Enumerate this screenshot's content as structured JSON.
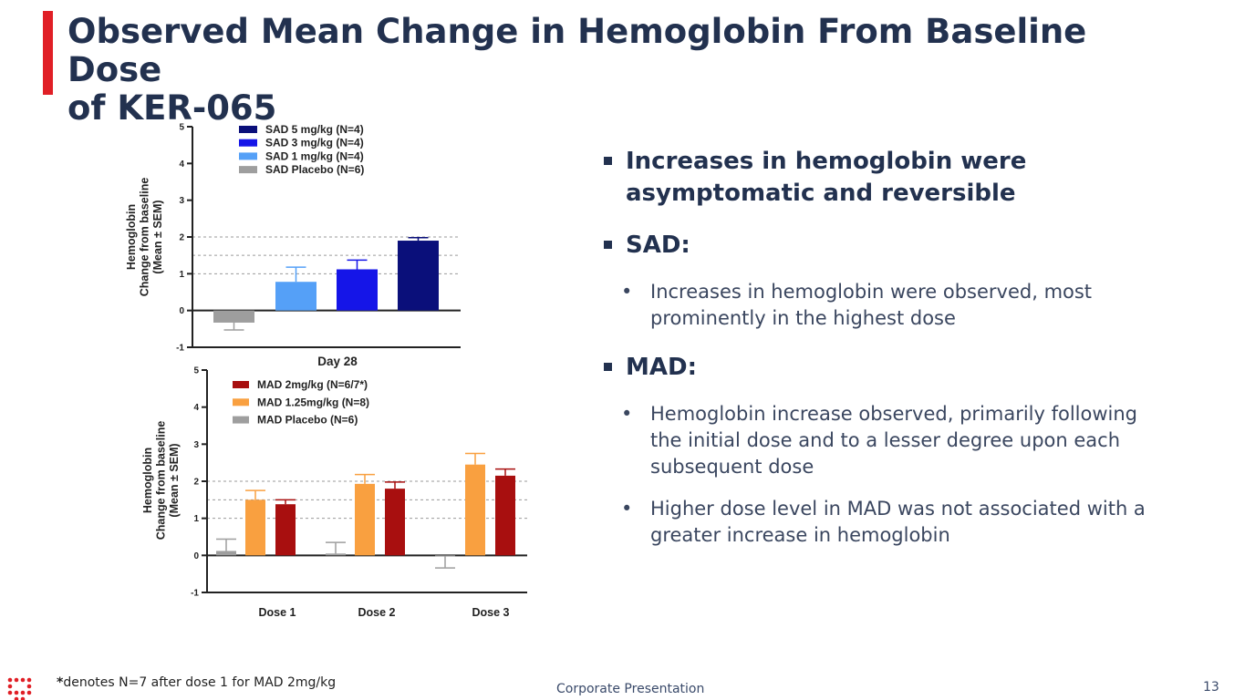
{
  "slide": {
    "title_line1": "Observed Mean Change in Hemoglobin From Baseline Dose",
    "title_line2": "of KER-065",
    "footnote_mark": "*",
    "footnote": "denotes N=7 after dose 1 for MAD 2mg/kg",
    "footer": "Corporate Presentation",
    "page_number": "13",
    "accent_color": "#e01f26"
  },
  "bullets": {
    "b1": "Increases in hemoglobin were asymptomatic and reversible",
    "b2": "SAD:",
    "b2_sub1": "Increases in hemoglobin were observed, most prominently in the highest dose",
    "b3": "MAD:",
    "b3_sub1": "Hemoglobin increase observed, primarily following the initial dose and to a lesser degree upon each subsequent dose",
    "b3_sub2": "Higher dose level in MAD was not associated with a greater increase in hemoglobin",
    "sub_marker": "•"
  },
  "chart_data": [
    {
      "type": "bar",
      "ylabel_lines": [
        "Hemoglobin",
        "Change from baseline",
        "(Mean ± SEM)"
      ],
      "xlabel": "Day 28",
      "categories": [
        "Day 28"
      ],
      "ylim": [
        -1,
        5
      ],
      "yticks": [
        "-1",
        "0",
        "1",
        "2",
        "3",
        "4",
        "5"
      ],
      "dashed_gridlines": [
        1,
        1.5,
        2
      ],
      "series": [
        {
          "name": "SAD Placebo (N=6)",
          "color": "#9e9e9e",
          "values": [
            -0.33
          ],
          "errors": [
            0.2
          ]
        },
        {
          "name": "SAD 1 mg/kg (N=4)",
          "color": "#55a0f7",
          "values": [
            0.78
          ],
          "errors": [
            0.4
          ]
        },
        {
          "name": "SAD 3 mg/kg (N=4)",
          "color": "#1515e8",
          "values": [
            1.12
          ],
          "errors": [
            0.25
          ]
        },
        {
          "name": "SAD 5 mg/kg (N=4)",
          "color": "#0a0f7a",
          "values": [
            1.9
          ],
          "errors": [
            0.08
          ]
        }
      ],
      "legend_order": [
        "SAD 5 mg/kg (N=4)",
        "SAD 3 mg/kg (N=4)",
        "SAD 1 mg/kg (N=4)",
        "SAD Placebo (N=6)"
      ],
      "legend_position": "top-left"
    },
    {
      "type": "bar",
      "ylabel_lines": [
        "Hemoglobin",
        "Change from baseline",
        "(Mean ± SEM)"
      ],
      "xlabel": "",
      "categories": [
        "Dose 1",
        "Dose 2",
        "Dose 3"
      ],
      "ylim": [
        -1,
        5
      ],
      "yticks": [
        "-1",
        "0",
        "1",
        "2",
        "3",
        "4",
        "5"
      ],
      "dashed_gridlines": [
        1,
        1.5,
        2
      ],
      "series": [
        {
          "name": "MAD Placebo (N=6)",
          "color": "#9e9e9e",
          "values": [
            0.12,
            0.05,
            -0.02
          ],
          "errors": [
            0.32,
            0.3,
            0.32
          ]
        },
        {
          "name": "MAD 1.25mg/kg (N=8)",
          "color": "#f9a040",
          "values": [
            1.5,
            1.93,
            2.45
          ],
          "errors": [
            0.25,
            0.25,
            0.3
          ]
        },
        {
          "name": "MAD 2mg/kg (N=6/7*)",
          "color": "#a80f0f",
          "values": [
            1.38,
            1.8,
            2.15
          ],
          "errors": [
            0.12,
            0.18,
            0.18
          ]
        }
      ],
      "legend_order": [
        "MAD 2mg/kg (N=6/7*)",
        "MAD 1.25mg/kg (N=8)",
        "MAD Placebo (N=6)"
      ],
      "legend_position": "top-left"
    }
  ]
}
